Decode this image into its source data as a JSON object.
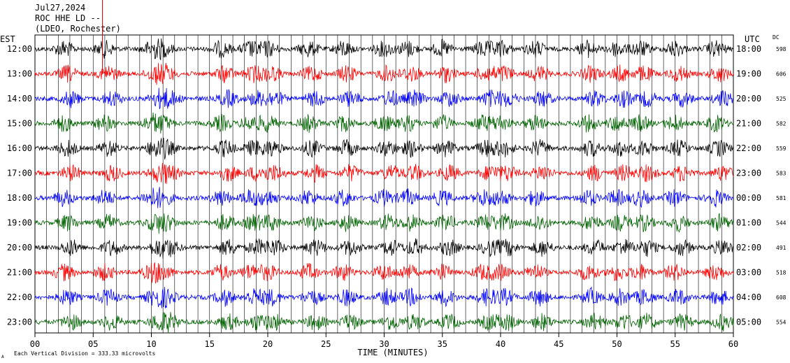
{
  "header": {
    "date": "Jul27,2024",
    "station": "ROC HHE LD --",
    "network": "(LDEO, Rochester)"
  },
  "left_tz": "EST",
  "right_tz": "UTC",
  "dc_label": "DC",
  "footer": {
    "corner_mark": "A",
    "scale_text": "Each Vertical Division =  333.33 microvolts"
  },
  "colors": {
    "black": "#000000",
    "red": "#ff0000",
    "blue": "#0000ff",
    "green": "#006400",
    "marker": "#cc0000"
  },
  "chart_data": {
    "type": "line",
    "title": "",
    "xlabel": "TIME (MINUTES)",
    "ylabel": "",
    "xlim": [
      0,
      60
    ],
    "x_ticks": [
      "00",
      "05",
      "10",
      "15",
      "20",
      "25",
      "30",
      "35",
      "40",
      "45",
      "50",
      "55",
      "60"
    ],
    "grid": true,
    "rows": [
      {
        "est": "12:00",
        "utc": "18:00",
        "dc": "598",
        "color": "black"
      },
      {
        "est": "13:00",
        "utc": "19:00",
        "dc": "606",
        "color": "red"
      },
      {
        "est": "14:00",
        "utc": "20:00",
        "dc": "525",
        "color": "blue"
      },
      {
        "est": "15:00",
        "utc": "21:00",
        "dc": "582",
        "color": "green"
      },
      {
        "est": "16:00",
        "utc": "22:00",
        "dc": "559",
        "color": "black"
      },
      {
        "est": "17:00",
        "utc": "23:00",
        "dc": "583",
        "color": "red"
      },
      {
        "est": "18:00",
        "utc": "00:00",
        "dc": "581",
        "color": "blue"
      },
      {
        "est": "19:00",
        "utc": "01:00",
        "dc": "544",
        "color": "green"
      },
      {
        "est": "20:00",
        "utc": "02:00",
        "dc": "491",
        "color": "black"
      },
      {
        "est": "21:00",
        "utc": "03:00",
        "dc": "518",
        "color": "red"
      },
      {
        "est": "22:00",
        "utc": "04:00",
        "dc": "608",
        "color": "blue"
      },
      {
        "est": "23:00",
        "utc": "05:00",
        "dc": "554",
        "color": "green"
      }
    ],
    "event_marker_minute": 5.8
  }
}
